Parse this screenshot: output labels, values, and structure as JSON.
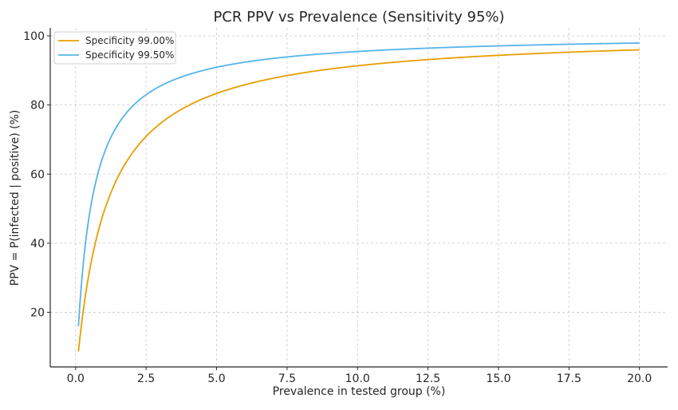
{
  "chart_data": {
    "type": "line",
    "title": "PCR PPV vs Prevalence (Sensitivity 95%)",
    "xlabel": "Prevalence in tested group (%)",
    "ylabel": "PPV = P(infected | positive) (%)",
    "xlim": [
      -0.9,
      21.0
    ],
    "ylim": [
      4.2,
      102.3
    ],
    "xticks": [
      0.0,
      2.5,
      5.0,
      7.5,
      10.0,
      12.5,
      15.0,
      17.5,
      20.0
    ],
    "xtick_labels": [
      "0.0",
      "2.5",
      "5.0",
      "7.5",
      "10.0",
      "12.5",
      "15.0",
      "17.5",
      "20.0"
    ],
    "yticks": [
      20,
      40,
      60,
      80,
      100
    ],
    "ytick_labels": [
      "20",
      "40",
      "60",
      "80",
      "100"
    ],
    "grid": true,
    "legend_position": "top-left",
    "sensitivity": 0.95,
    "x_range": [
      0.1,
      20.0
    ],
    "series": [
      {
        "name": "Specificity 99.00%",
        "specificity": 0.99,
        "color": "#e69f00",
        "sample_points": [
          [
            0.1,
            8.7
          ],
          [
            0.5,
            32.3
          ],
          [
            1.0,
            49.0
          ],
          [
            2.5,
            70.9
          ],
          [
            5.0,
            83.3
          ],
          [
            10.0,
            91.3
          ],
          [
            15.0,
            94.4
          ],
          [
            20.0,
            96.0
          ]
        ]
      },
      {
        "name": "Specificity 99.50%",
        "specificity": 0.995,
        "color": "#56b4e9",
        "sample_points": [
          [
            0.1,
            16.0
          ],
          [
            0.5,
            48.8
          ],
          [
            1.0,
            65.7
          ],
          [
            2.5,
            83.0
          ],
          [
            5.0,
            90.9
          ],
          [
            10.0,
            95.5
          ],
          [
            15.0,
            97.1
          ],
          [
            20.0,
            97.9
          ]
        ]
      }
    ]
  }
}
